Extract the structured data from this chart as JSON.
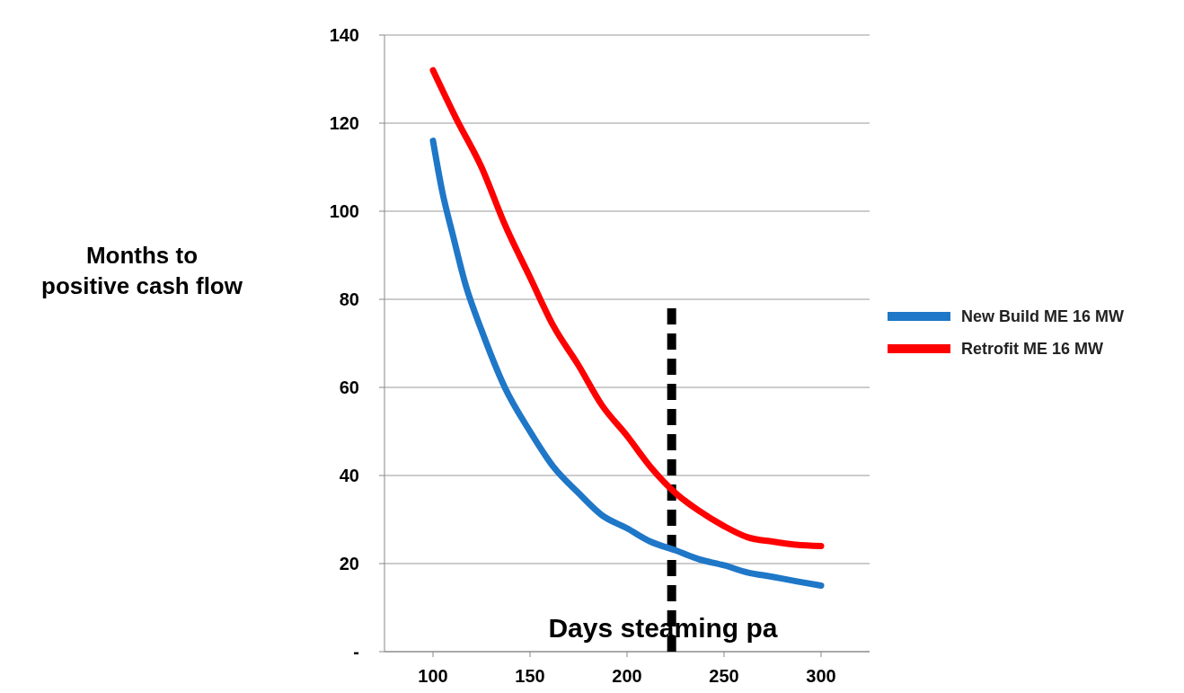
{
  "chart_data": {
    "type": "line",
    "xlabel": "Days steaming pa",
    "ylabel": "Months to positive cash flow",
    "xlim": [
      75,
      325
    ],
    "xticks": [
      100,
      150,
      200,
      250,
      300
    ],
    "ylim": [
      0,
      140
    ],
    "yticks": [
      {
        "value": 0,
        "label": "-"
      },
      20,
      40,
      60,
      80,
      100,
      120,
      140
    ],
    "grid": "y",
    "legend": "right",
    "marker": "none",
    "line_style": "solid",
    "series": [
      {
        "name": "New Build ME 16 MW",
        "color": "#1f77c8",
        "x": [
          100,
          105,
          110,
          117,
          125,
          137,
          150,
          162,
          175,
          187,
          200,
          212,
          225,
          237,
          250,
          262,
          275,
          287,
          300
        ],
        "values": [
          116,
          104,
          95,
          83,
          73,
          60,
          50,
          42,
          36,
          31,
          28,
          25,
          23,
          21,
          19.6,
          18,
          17,
          16,
          15
        ]
      },
      {
        "name": "Retrofit ME 16 MW",
        "color": "#ff0000",
        "x": [
          100,
          112,
          125,
          137,
          150,
          162,
          175,
          187,
          200,
          212,
          225,
          237,
          250,
          262,
          275,
          287,
          300
        ],
        "values": [
          132,
          121,
          110,
          97,
          85,
          74,
          65,
          56,
          49,
          42,
          36,
          32,
          28.5,
          26,
          25,
          24.3,
          24
        ]
      }
    ],
    "ref_lines": [
      {
        "axis": "x",
        "value": 223,
        "color": "#000000",
        "line_style": "dashed"
      }
    ]
  }
}
